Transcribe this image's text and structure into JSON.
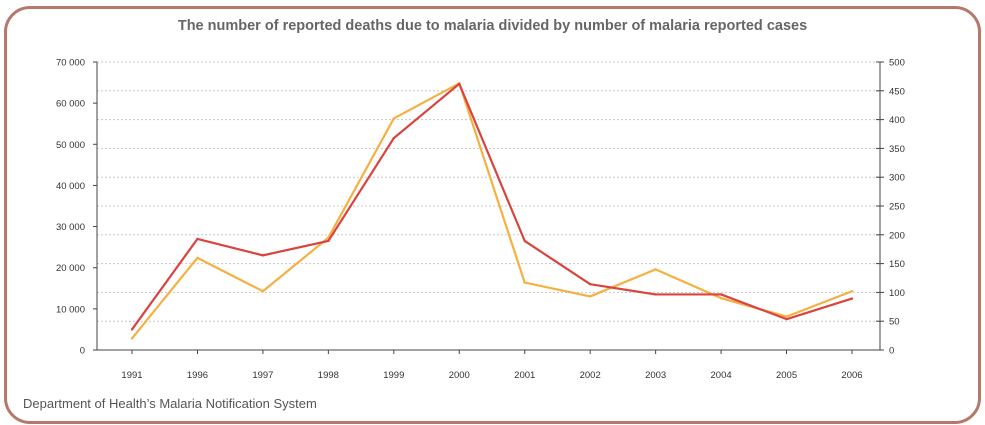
{
  "chart_data": {
    "type": "line",
    "title": "The number of reported deaths due to malaria divided by number of malaria reported cases",
    "categories": [
      "1991",
      "1996",
      "1997",
      "1998",
      "1999",
      "2000",
      "2001",
      "2002",
      "2003",
      "2004",
      "2005",
      "2006"
    ],
    "series": [
      {
        "axis": "left",
        "color": "#d9443f",
        "values": [
          5000,
          27000,
          23000,
          26500,
          51500,
          64700,
          26500,
          16000,
          13500,
          13500,
          7500,
          12500
        ]
      },
      {
        "axis": "right",
        "color": "#f5b041",
        "values": [
          20,
          160,
          102,
          195,
          402,
          463,
          117,
          93,
          140,
          90,
          58,
          102
        ]
      }
    ],
    "y_left": {
      "ylim": [
        0,
        70000
      ],
      "ticks": [
        0,
        10000,
        20000,
        30000,
        40000,
        50000,
        60000,
        70000
      ],
      "tick_labels": [
        "0",
        "10 000",
        "20 000",
        "30 000",
        "40 000",
        "50 000",
        "60 000",
        "70 000"
      ]
    },
    "y_right": {
      "ylim": [
        0,
        500
      ],
      "ticks": [
        0,
        50,
        100,
        150,
        200,
        250,
        300,
        350,
        400,
        450,
        500
      ],
      "tick_labels": [
        "0",
        "50",
        "100",
        "150",
        "200",
        "250",
        "300",
        "350",
        "400",
        "450",
        "500"
      ]
    },
    "grid": true,
    "source": "Department of Health’s Malaria Notification System"
  }
}
